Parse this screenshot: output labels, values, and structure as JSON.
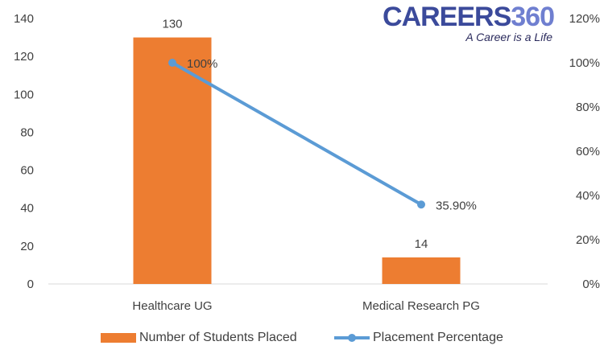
{
  "chart_data": {
    "type": "bar+line",
    "categories": [
      "Healthcare UG",
      "Medical Research PG"
    ],
    "bar_series": {
      "name": "Number of Students Placed",
      "values": [
        130,
        14
      ],
      "data_labels": [
        "130",
        "14"
      ],
      "color": "#ED7D31"
    },
    "line_series": {
      "name": "Placement Percentage",
      "values": [
        1.0,
        0.359
      ],
      "data_labels": [
        "100%",
        "35.90%"
      ],
      "color": "#5B9BD5"
    },
    "y_left": {
      "ylim": [
        0,
        140
      ],
      "ticks": [
        0,
        20,
        40,
        60,
        80,
        100,
        120,
        140
      ],
      "tick_labels": [
        "0",
        "20",
        "40",
        "60",
        "80",
        "100",
        "120",
        "140"
      ]
    },
    "y_right": {
      "ylim": [
        0,
        1.2
      ],
      "ticks": [
        0,
        0.2,
        0.4,
        0.6,
        0.8,
        1.0,
        1.2
      ],
      "tick_labels": [
        "0%",
        "20%",
        "40%",
        "60%",
        "80%",
        "100%",
        "120%"
      ]
    },
    "grid": false,
    "legend_position": "bottom"
  },
  "logo": {
    "main": "CAREERS",
    "number": "360",
    "tagline": "A Career is a Life"
  }
}
